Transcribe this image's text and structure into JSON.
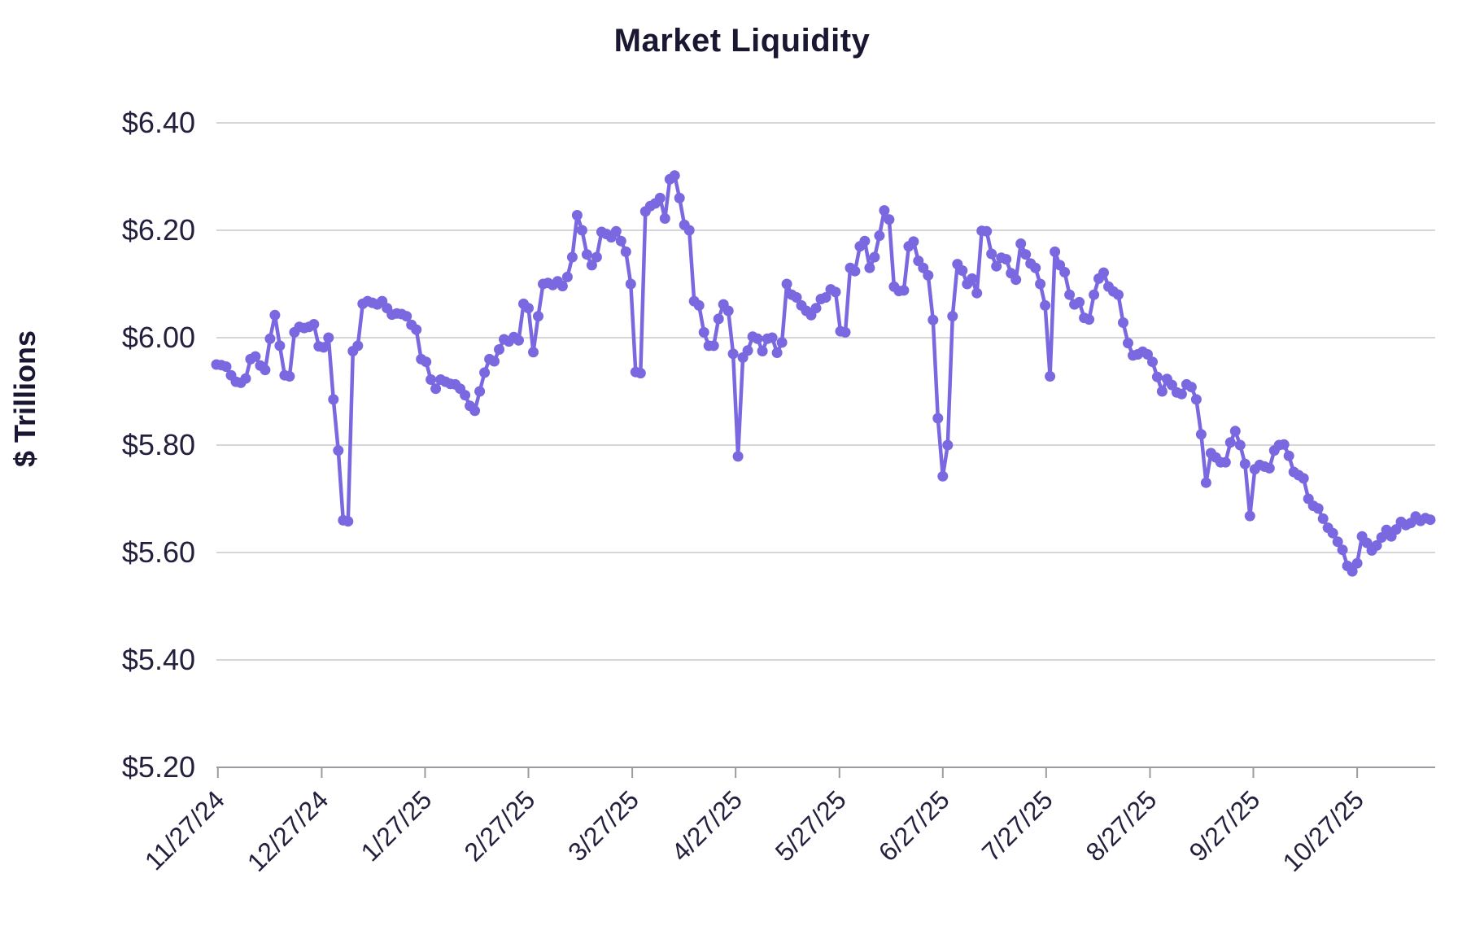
{
  "chart_data": {
    "type": "line",
    "title": "Market Liquidity",
    "ylabel": "$ Trillions",
    "xlabel": "",
    "grid": true,
    "legend": "none",
    "line_color": "#7a68e0",
    "marker_color": "#7a68e0",
    "text_color": "#23203d",
    "grid_color": "#c9c9cc",
    "axis_color": "#9b9ba1",
    "background_color": "#ffffff",
    "ylim": [
      5.2,
      6.4
    ],
    "y_ticks": [
      {
        "label": "$6.40",
        "value": 6.4
      },
      {
        "label": "$6.20",
        "value": 6.2
      },
      {
        "label": "$6.00",
        "value": 6.0
      },
      {
        "label": "$5.80",
        "value": 5.8
      },
      {
        "label": "$5.60",
        "value": 5.6
      },
      {
        "label": "$5.40",
        "value": 5.4
      },
      {
        "label": "$5.20",
        "value": 5.2
      }
    ],
    "x_ticks": [
      {
        "label": "11/27/24",
        "index": 0.3
      },
      {
        "label": "12/27/24",
        "index": 21.6
      },
      {
        "label": "1/27/25",
        "index": 42.8
      },
      {
        "label": "2/27/25",
        "index": 64.0
      },
      {
        "label": "3/27/25",
        "index": 85.3
      },
      {
        "label": "4/27/25",
        "index": 106.5
      },
      {
        "label": "5/27/25",
        "index": 127.8
      },
      {
        "label": "6/27/25",
        "index": 149.0
      },
      {
        "label": "7/27/25",
        "index": 170.2
      },
      {
        "label": "8/27/25",
        "index": 191.5
      },
      {
        "label": "9/27/25",
        "index": 212.7
      },
      {
        "label": "10/27/25",
        "index": 234.0
      }
    ],
    "series_name": "Market Liquidity ($ Trillions)",
    "values": [
      5.95,
      5.949,
      5.946,
      5.93,
      5.918,
      5.916,
      5.924,
      5.96,
      5.965,
      5.948,
      5.94,
      5.998,
      6.042,
      5.985,
      5.93,
      5.928,
      6.01,
      6.02,
      6.018,
      6.02,
      6.025,
      5.984,
      5.982,
      6.0,
      5.885,
      5.79,
      5.66,
      5.658,
      5.975,
      5.985,
      6.063,
      6.068,
      6.065,
      6.062,
      6.068,
      6.055,
      6.043,
      6.045,
      6.044,
      6.04,
      6.024,
      6.015,
      5.96,
      5.955,
      5.922,
      5.905,
      5.922,
      5.918,
      5.914,
      5.913,
      5.905,
      5.893,
      5.873,
      5.864,
      5.9,
      5.935,
      5.96,
      5.956,
      5.978,
      5.997,
      5.993,
      6.001,
      5.995,
      6.063,
      6.055,
      5.973,
      6.04,
      6.1,
      6.102,
      6.098,
      6.105,
      6.096,
      6.113,
      6.15,
      6.228,
      6.2,
      6.155,
      6.135,
      6.15,
      6.197,
      6.193,
      6.187,
      6.198,
      6.18,
      6.16,
      6.1,
      5.936,
      5.934,
      6.235,
      6.245,
      6.25,
      6.26,
      6.222,
      6.295,
      6.302,
      6.26,
      6.21,
      6.2,
      6.068,
      6.06,
      6.01,
      5.985,
      5.985,
      6.035,
      6.062,
      6.05,
      5.97,
      5.779,
      5.963,
      5.976,
      6.002,
      5.998,
      5.975,
      5.998,
      6.0,
      5.972,
      5.991,
      6.1,
      6.08,
      6.075,
      6.06,
      6.05,
      6.042,
      6.055,
      6.072,
      6.075,
      6.09,
      6.085,
      6.012,
      6.01,
      6.13,
      6.124,
      6.17,
      6.18,
      6.13,
      6.15,
      6.19,
      6.237,
      6.22,
      6.095,
      6.087,
      6.088,
      6.17,
      6.179,
      6.143,
      6.13,
      6.116,
      6.033,
      5.85,
      5.742,
      5.8,
      6.04,
      6.137,
      6.125,
      6.1,
      6.11,
      6.083,
      6.199,
      6.198,
      6.156,
      6.133,
      6.149,
      6.146,
      6.12,
      6.108,
      6.175,
      6.155,
      6.138,
      6.13,
      6.1,
      6.06,
      5.928,
      6.16,
      6.135,
      6.122,
      6.08,
      6.062,
      6.066,
      6.037,
      6.034,
      6.08,
      6.11,
      6.121,
      6.095,
      6.086,
      6.08,
      6.028,
      5.99,
      5.967,
      5.969,
      5.974,
      5.969,
      5.955,
      5.927,
      5.9,
      5.923,
      5.912,
      5.898,
      5.895,
      5.913,
      5.908,
      5.885,
      5.82,
      5.73,
      5.785,
      5.777,
      5.768,
      5.768,
      5.805,
      5.826,
      5.8,
      5.765,
      5.668,
      5.755,
      5.763,
      5.76,
      5.757,
      5.79,
      5.8,
      5.801,
      5.78,
      5.75,
      5.744,
      5.738,
      5.7,
      5.687,
      5.682,
      5.663,
      5.646,
      5.636,
      5.62,
      5.605,
      5.575,
      5.565,
      5.58,
      5.63,
      5.618,
      5.604,
      5.613,
      5.628,
      5.642,
      5.63,
      5.643,
      5.657,
      5.651,
      5.655,
      5.667,
      5.659,
      5.664,
      5.661
    ]
  }
}
